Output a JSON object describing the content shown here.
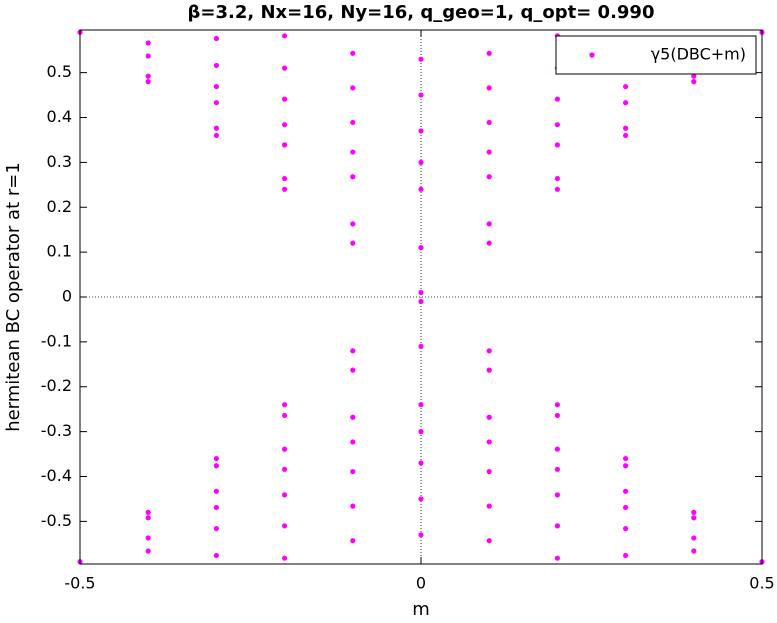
{
  "chart_data": {
    "type": "scatter",
    "title": "β=3.2, Nx=16, Ny=16, q_geo=1, q_opt= 0.990",
    "xlabel": "m",
    "ylabel": "hermitean BC operator at r=1",
    "xlim": [
      -0.5,
      0.5
    ],
    "xticks": [
      -0.5,
      0,
      0.5
    ],
    "ylim": [
      -0.595,
      0.595
    ],
    "yticks": [
      -0.5,
      -0.4,
      -0.3,
      -0.2,
      -0.1,
      0,
      0.1,
      0.2,
      0.3,
      0.4,
      0.5
    ],
    "zero_lines": true,
    "legend": "upper right",
    "series": [
      {
        "name": "γ5(DBC+m)",
        "color": "#ff00ff",
        "x": [
          -0.5,
          -0.4,
          -0.3,
          -0.2,
          -0.1,
          0,
          0.1,
          0.2,
          0.3,
          0.4,
          0.5,
          -0.4,
          -0.3,
          -0.2,
          -0.1,
          0,
          0.1,
          0.2,
          0.3,
          0.4,
          -0.4,
          -0.3,
          -0.2,
          -0.1,
          0,
          0.1,
          0.2,
          0.3,
          0.4,
          -0.4,
          -0.3,
          -0.2,
          -0.1,
          0,
          0.1,
          0.2,
          0.3,
          0.4,
          -0.3,
          -0.2,
          -0.1,
          0,
          0.1,
          0.2,
          0.3,
          -0.3,
          -0.2,
          -0.1,
          0,
          0.1,
          0.2,
          0.3,
          -0.2,
          -0.1,
          0,
          0.1,
          0.2,
          -0.5,
          -0.4,
          -0.3,
          -0.2,
          -0.1,
          0,
          0.1,
          0.2,
          0.3,
          0.4,
          0.5,
          -0.4,
          -0.3,
          -0.2,
          -0.1,
          0,
          0.1,
          0.2,
          0.3,
          0.4,
          -0.4,
          -0.3,
          -0.2,
          -0.1,
          0,
          0.1,
          0.2,
          0.3,
          0.4,
          -0.4,
          -0.3,
          -0.2,
          -0.1,
          0,
          0.1,
          0.2,
          0.3,
          0.4,
          -0.3,
          -0.2,
          -0.1,
          0,
          0.1,
          0.2,
          0.3,
          -0.3,
          -0.2,
          -0.1,
          0,
          0.1,
          0.2,
          0.3,
          -0.2,
          -0.1,
          0,
          0.1,
          0.2
        ],
        "values": [
          0.59,
          0.48,
          0.36,
          0.24,
          0.12,
          0.01,
          0.12,
          0.24,
          0.36,
          0.48,
          0.59,
          0.492,
          0.376,
          0.264,
          0.163,
          0.11,
          0.163,
          0.264,
          0.376,
          0.492,
          0.537,
          0.433,
          0.339,
          0.268,
          0.24,
          0.268,
          0.339,
          0.433,
          0.537,
          0.566,
          0.469,
          0.384,
          0.323,
          0.3,
          0.323,
          0.384,
          0.469,
          0.566,
          0.516,
          0.441,
          0.389,
          0.37,
          0.389,
          0.441,
          0.516,
          0.576,
          0.51,
          0.466,
          0.45,
          0.466,
          0.51,
          0.576,
          0.582,
          0.543,
          0.53,
          0.543,
          0.582,
          -0.59,
          -0.48,
          -0.36,
          -0.24,
          -0.12,
          -0.01,
          -0.12,
          -0.24,
          -0.36,
          -0.48,
          -0.59,
          -0.492,
          -0.376,
          -0.264,
          -0.163,
          -0.11,
          -0.163,
          -0.264,
          -0.376,
          -0.492,
          -0.537,
          -0.433,
          -0.339,
          -0.268,
          -0.24,
          -0.268,
          -0.339,
          -0.433,
          -0.537,
          -0.566,
          -0.469,
          -0.384,
          -0.323,
          -0.3,
          -0.323,
          -0.384,
          -0.469,
          -0.566,
          -0.516,
          -0.441,
          -0.389,
          -0.37,
          -0.389,
          -0.441,
          -0.516,
          -0.576,
          -0.51,
          -0.466,
          -0.45,
          -0.466,
          -0.51,
          -0.576,
          -0.582,
          -0.543,
          -0.53,
          -0.543,
          -0.582
        ]
      }
    ]
  }
}
